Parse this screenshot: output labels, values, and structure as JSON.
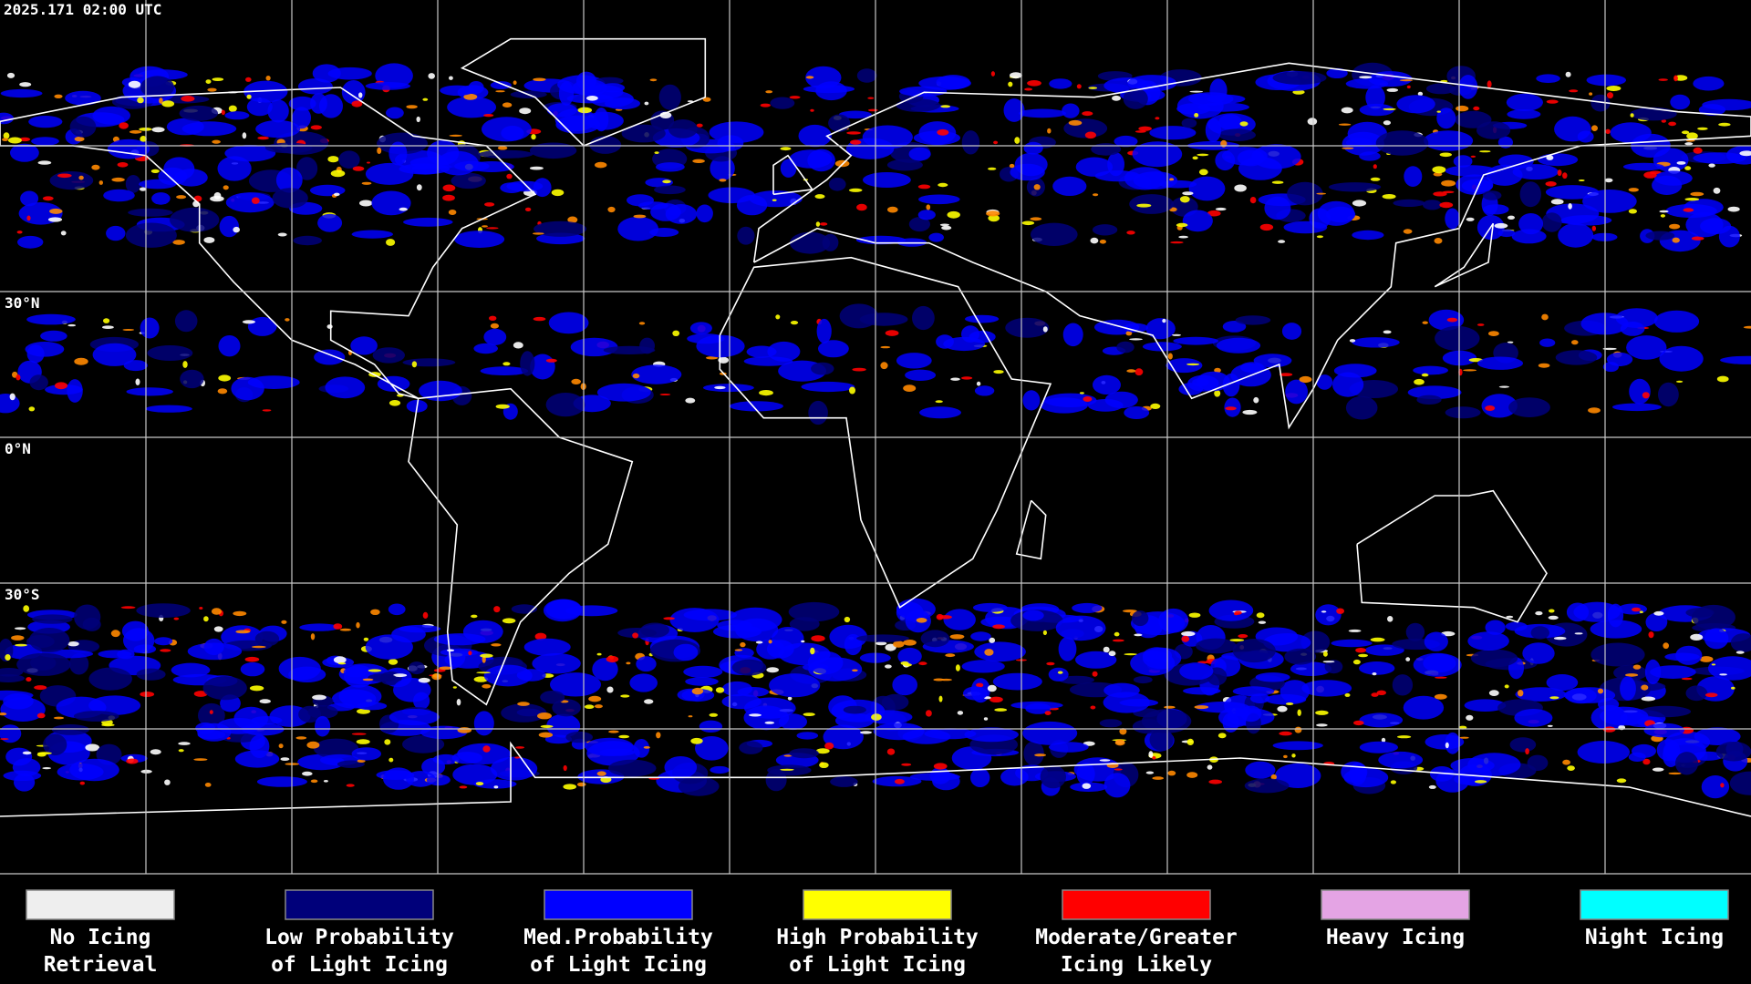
{
  "header": {
    "timestamp": "2025.171 02:00 UTC"
  },
  "map": {
    "latitude_labels": [
      "30°N",
      "0°N",
      "30°S"
    ]
  },
  "legend": [
    {
      "color": "#eeeeee",
      "label": [
        "No Icing",
        "Retrieval"
      ]
    },
    {
      "color": "#00007a",
      "label": [
        "Low Probability",
        "of Light Icing"
      ]
    },
    {
      "color": "#0000ff",
      "label": [
        "Med.Probability",
        "of Light Icing"
      ]
    },
    {
      "color": "#ffff00",
      "label": [
        "High Probability",
        "of Light Icing"
      ]
    },
    {
      "color": "#ff0000",
      "label": [
        "Moderate/Greater",
        "Icing Likely"
      ]
    },
    {
      "color": "#e4a4e4",
      "label": [
        "Heavy Icing",
        ""
      ]
    },
    {
      "color": "#00ffff",
      "label": [
        "Night Icing",
        ""
      ]
    }
  ]
}
